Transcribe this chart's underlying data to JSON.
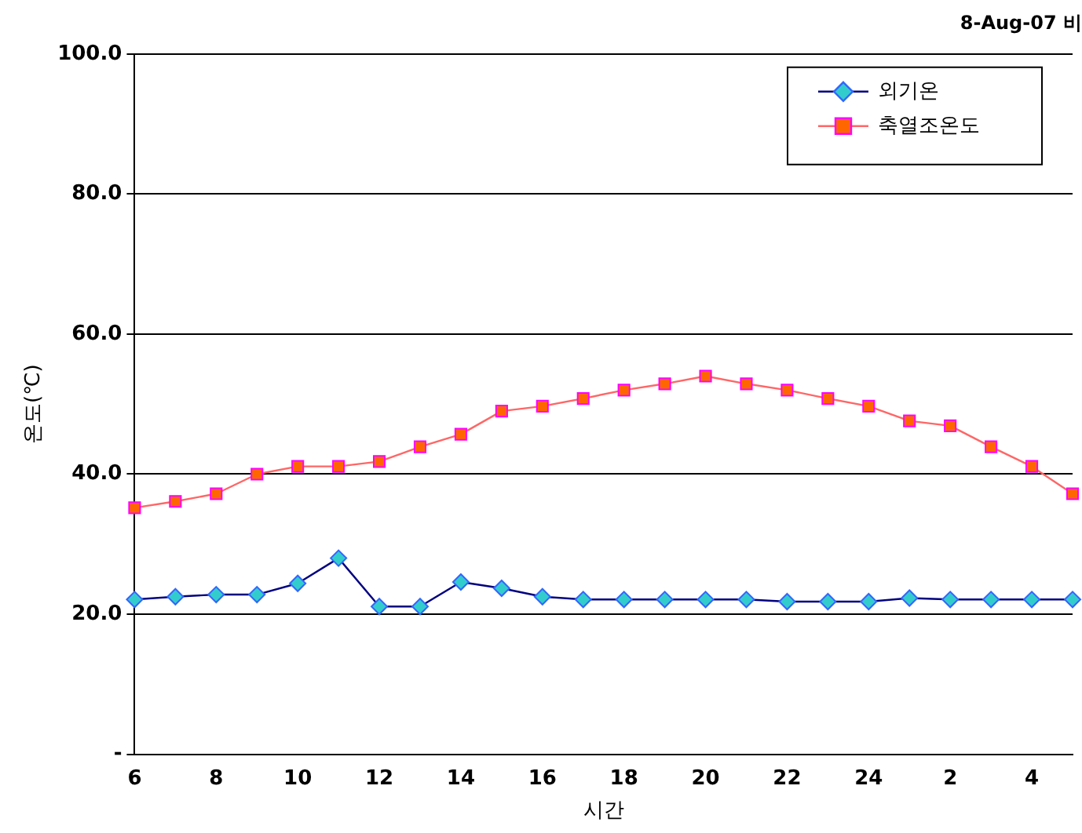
{
  "chart_data": {
    "type": "line",
    "title": "8-Aug-07 비",
    "xlabel": "시간",
    "ylabel": "온도(℃)",
    "categories": [
      "6",
      null,
      "8",
      null,
      "10",
      null,
      "12",
      null,
      "14",
      null,
      "16",
      null,
      "18",
      null,
      "20",
      null,
      "22",
      null,
      "24",
      null,
      "2",
      null,
      "4",
      null
    ],
    "series": [
      {
        "name": "외기온",
        "color": "#000080",
        "marker": "diamond",
        "values": [
          22.1,
          22.5,
          22.8,
          22.8,
          24.4,
          28.0,
          21.1,
          21.1,
          24.6,
          23.7,
          22.5,
          22.1,
          22.1,
          22.1,
          22.1,
          22.1,
          21.8,
          21.8,
          21.8,
          22.3,
          22.1,
          22.1,
          22.1,
          22.1
        ]
      },
      {
        "name": "축열조온도",
        "color": "#ff6666",
        "marker": "square",
        "values": [
          35.2,
          36.1,
          37.2,
          40.0,
          41.1,
          41.1,
          41.8,
          43.9,
          45.7,
          49.0,
          49.7,
          50.8,
          52.0,
          52.9,
          54.0,
          52.9,
          52.0,
          50.8,
          49.7,
          47.6,
          46.9,
          43.9,
          41.1,
          37.2
        ]
      }
    ],
    "ylim": [
      0,
      100
    ],
    "yticks": [
      {
        "value": 0,
        "label": "-"
      },
      {
        "value": 20,
        "label": "20.0"
      },
      {
        "value": 40,
        "label": "40.0"
      },
      {
        "value": 60,
        "label": "60.0"
      },
      {
        "value": 80,
        "label": "80.0"
      },
      {
        "value": 100,
        "label": "100.0"
      }
    ],
    "grid": "y",
    "legend": "top right"
  }
}
